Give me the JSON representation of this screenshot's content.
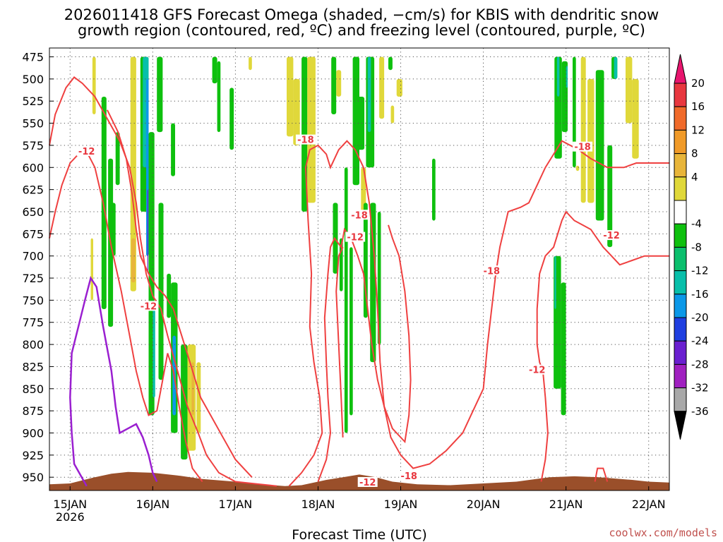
{
  "chart_data": {
    "type": "heatmap",
    "title_lines": [
      "2026011418 GFS Forecast Omega (shaded, −cm/s) for KBIS with dendritic snow",
      "growth region (contoured, red, ºC) and freezing level (contoured, purple, ºC)"
    ],
    "xlabel": "Forecast Time (UTC)",
    "x_ticks": [
      {
        "day": 0,
        "label": "15JAN",
        "sub": "2026"
      },
      {
        "day": 1,
        "label": "16JAN",
        "sub": ""
      },
      {
        "day": 2,
        "label": "17JAN",
        "sub": ""
      },
      {
        "day": 3,
        "label": "18JAN",
        "sub": ""
      },
      {
        "day": 4,
        "label": "19JAN",
        "sub": ""
      },
      {
        "day": 5,
        "label": "20JAN",
        "sub": ""
      },
      {
        "day": 6,
        "label": "21JAN",
        "sub": ""
      },
      {
        "day": 7,
        "label": "22JAN",
        "sub": ""
      }
    ],
    "xlim": [
      -0.25,
      7.25
    ],
    "y_levels": [
      475,
      500,
      525,
      550,
      575,
      600,
      625,
      650,
      675,
      700,
      725,
      750,
      775,
      800,
      825,
      850,
      875,
      900,
      925,
      950
    ],
    "ylim": [
      465,
      965
    ],
    "grid": true,
    "colorbar": {
      "ticks": [
        20,
        16,
        12,
        8,
        4,
        -4,
        -8,
        -12,
        -16,
        -20,
        -24,
        -28,
        -32,
        -36
      ],
      "colors": [
        "#e8156e",
        "#e8373f",
        "#f06a2a",
        "#f09a28",
        "#e8b53a",
        "#e0d83a",
        "#ffffff",
        "#0ec00e",
        "#0bbf6d",
        "#08bfaa",
        "#0b98e8",
        "#1f3fe0",
        "#6a1fd0",
        "#a020c0",
        "#a8a8a8",
        "#000000"
      ]
    },
    "contour_labels": [
      {
        "day": 0.2,
        "level": 583,
        "text": "-12"
      },
      {
        "day": 0.95,
        "level": 758,
        "text": "-12"
      },
      {
        "day": 2.85,
        "level": 570,
        "text": "-18"
      },
      {
        "day": 3.5,
        "level": 655,
        "text": "-18"
      },
      {
        "day": 3.45,
        "level": 680,
        "text": "-12"
      },
      {
        "day": 5.1,
        "level": 718,
        "text": "-18"
      },
      {
        "day": 5.65,
        "level": 830,
        "text": "-12"
      },
      {
        "day": 6.2,
        "level": 578,
        "text": "-18"
      },
      {
        "day": 6.55,
        "level": 678,
        "text": "-12"
      },
      {
        "day": 3.6,
        "level": 957,
        "text": "-12"
      },
      {
        "day": 4.1,
        "level": 950,
        "text": "-18"
      }
    ],
    "freezing_level_color": "#9a1fd0",
    "dgz_color": "#ef4040",
    "terrain_color": "#9a4f2a",
    "omega_colors": {
      "green": "#0ec00e",
      "teal": "#0bbf6d",
      "cyan": "#08bfaa",
      "blue": "#0b98e8",
      "purple": "#6a1fd0",
      "yellow": "#e0d83a",
      "gold": "#e8b53a"
    }
  },
  "credit": "coolwx.com/models"
}
